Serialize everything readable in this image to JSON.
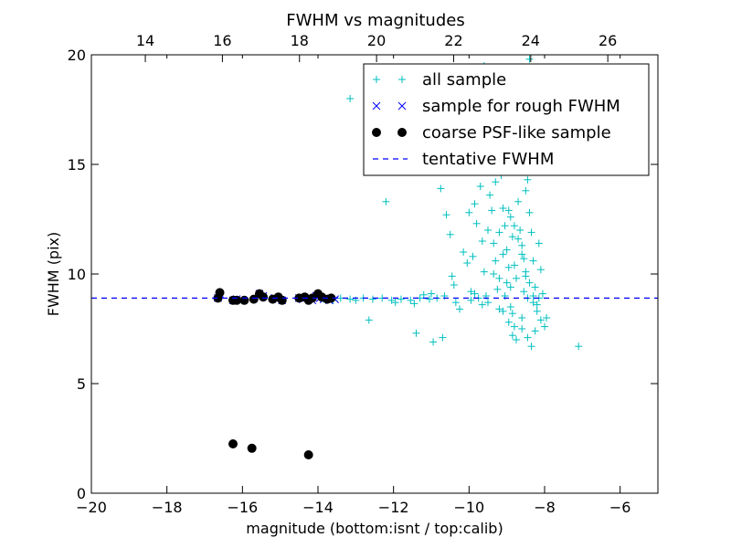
{
  "chart_data": {
    "type": "scatter",
    "title": "FWHM vs magnitudes",
    "xlabel": "magnitude (bottom:isnt / top:calib)",
    "ylabel": "FWHM (pix)",
    "xlim": [
      -20,
      -5
    ],
    "ylim": [
      0,
      20
    ],
    "x_ticks": [
      "−20",
      "−18",
      "−16",
      "−14",
      "−12",
      "−10",
      "−8",
      "−6"
    ],
    "x_tick_values": [
      -20,
      -18,
      -16,
      -14,
      -12,
      -10,
      -8,
      -6
    ],
    "top_xlim": [
      12.6,
      27.3
    ],
    "top_x_ticks": [
      "14",
      "16",
      "18",
      "20",
      "22",
      "24",
      "26"
    ],
    "top_x_tick_values": [
      14,
      16,
      18,
      20,
      22,
      24,
      26
    ],
    "y_ticks": [
      "0",
      "5",
      "10",
      "15",
      "20"
    ],
    "y_tick_values": [
      0,
      5,
      10,
      15,
      20
    ],
    "grid": false,
    "legend_position": "top-right",
    "series": [
      {
        "name": "all sample",
        "marker": "plus",
        "color": "#00bfbf",
        "points": [
          [
            -13.85,
            8.85
          ],
          [
            -13.6,
            8.8
          ],
          [
            -13.4,
            8.9
          ],
          [
            -13.15,
            8.85
          ],
          [
            -13.0,
            8.8
          ],
          [
            -12.8,
            8.9
          ],
          [
            -12.55,
            8.85
          ],
          [
            -12.3,
            8.9
          ],
          [
            -12.05,
            8.8
          ],
          [
            -11.8,
            8.85
          ],
          [
            -11.55,
            8.8
          ],
          [
            -11.3,
            8.9
          ],
          [
            -11.05,
            8.85
          ],
          [
            -10.85,
            8.9
          ],
          [
            -10.65,
            9.0
          ],
          [
            -13.15,
            18.0
          ],
          [
            -12.2,
            13.3
          ],
          [
            -12.65,
            7.9
          ],
          [
            -11.95,
            8.7
          ],
          [
            -11.45,
            8.65
          ],
          [
            -11.4,
            7.3
          ],
          [
            -11.2,
            9.05
          ],
          [
            -11.0,
            9.1
          ],
          [
            -10.95,
            6.9
          ],
          [
            -10.75,
            13.9
          ],
          [
            -10.7,
            7.1
          ],
          [
            -10.6,
            12.7
          ],
          [
            -10.5,
            11.8
          ],
          [
            -10.45,
            9.9
          ],
          [
            -10.4,
            9.5
          ],
          [
            -10.35,
            8.7
          ],
          [
            -10.25,
            8.4
          ],
          [
            -10.15,
            11.0
          ],
          [
            -10.05,
            10.5
          ],
          [
            -10.0,
            12.8
          ],
          [
            -9.95,
            9.2
          ],
          [
            -9.9,
            10.8
          ],
          [
            -9.85,
            13.2
          ],
          [
            -9.8,
            12.3
          ],
          [
            -9.7,
            14.0
          ],
          [
            -9.65,
            11.5
          ],
          [
            -9.6,
            10.1
          ],
          [
            -9.55,
            9.0
          ],
          [
            -9.5,
            8.7
          ],
          [
            -9.45,
            13.6
          ],
          [
            -9.4,
            12.9
          ],
          [
            -9.35,
            11.4
          ],
          [
            -9.3,
            10.6
          ],
          [
            -9.25,
            9.3
          ],
          [
            -9.2,
            8.4
          ],
          [
            -9.15,
            14.5
          ],
          [
            -9.1,
            13.0
          ],
          [
            -9.05,
            12.2
          ],
          [
            -9.0,
            11.1
          ],
          [
            -8.95,
            10.3
          ],
          [
            -8.9,
            9.4
          ],
          [
            -8.85,
            8.2
          ],
          [
            -8.8,
            7.6
          ],
          [
            -9.3,
            14.2
          ],
          [
            -9.2,
            11.9
          ],
          [
            -9.1,
            10.9
          ],
          [
            -9.0,
            9.6
          ],
          [
            -8.9,
            12.6
          ],
          [
            -8.85,
            11.7
          ],
          [
            -8.8,
            10.4
          ],
          [
            -8.75,
            9.8
          ],
          [
            -8.7,
            13.3
          ],
          [
            -8.65,
            12.0
          ],
          [
            -8.6,
            11.3
          ],
          [
            -8.55,
            10.7
          ],
          [
            -8.5,
            9.9
          ],
          [
            -8.45,
            8.9
          ],
          [
            -8.4,
            12.8
          ],
          [
            -8.35,
            11.9
          ],
          [
            -8.3,
            10.6
          ],
          [
            -8.25,
            9.4
          ],
          [
            -8.2,
            8.6
          ],
          [
            -8.15,
            11.4
          ],
          [
            -8.1,
            10.2
          ],
          [
            -8.05,
            9.1
          ],
          [
            -8.95,
            12.9
          ],
          [
            -8.8,
            12.2
          ],
          [
            -8.7,
            11.6
          ],
          [
            -8.6,
            10.9
          ],
          [
            -8.5,
            10.1
          ],
          [
            -8.4,
            9.6
          ],
          [
            -8.3,
            9.0
          ],
          [
            -8.2,
            8.3
          ],
          [
            -8.1,
            7.9
          ],
          [
            -8.0,
            7.6
          ],
          [
            -7.95,
            8.0
          ],
          [
            -9.5,
            12.0
          ],
          [
            -9.35,
            10.0
          ],
          [
            -9.2,
            9.8
          ],
          [
            -9.1,
            8.3
          ],
          [
            -8.95,
            7.8
          ],
          [
            -8.85,
            7.2
          ],
          [
            -8.75,
            7.0
          ],
          [
            -8.6,
            7.5
          ],
          [
            -8.45,
            7.1
          ],
          [
            -8.35,
            6.7
          ],
          [
            -8.25,
            7.4
          ],
          [
            -7.1,
            6.7
          ],
          [
            -9.0,
            17.5
          ],
          [
            -8.7,
            16.2
          ],
          [
            -8.8,
            14.7
          ],
          [
            -8.5,
            13.8
          ],
          [
            -9.45,
            16.1
          ],
          [
            -9.25,
            15.1
          ],
          [
            -8.65,
            15.6
          ],
          [
            -8.45,
            14.3
          ],
          [
            -9.6,
            19.5
          ],
          [
            -8.4,
            19.8
          ],
          [
            -9.05,
            9.0
          ],
          [
            -8.9,
            8.5
          ],
          [
            -8.6,
            8.0
          ],
          [
            -8.3,
            8.7
          ],
          [
            -8.55,
            9.2
          ],
          [
            -8.15,
            8.9
          ],
          [
            -9.75,
            8.9
          ],
          [
            -9.65,
            8.6
          ],
          [
            -9.85,
            9.1
          ],
          [
            -9.95,
            8.8
          ]
        ]
      },
      {
        "name": "sample for rough FWHM",
        "marker": "x",
        "color": "#0000ff",
        "points": [
          [
            -16.65,
            8.9
          ],
          [
            -16.6,
            9.1
          ],
          [
            -16.25,
            8.8
          ],
          [
            -16.15,
            8.85
          ],
          [
            -15.55,
            9.1
          ],
          [
            -15.45,
            9.0
          ],
          [
            -15.15,
            8.9
          ],
          [
            -15.05,
            8.85
          ],
          [
            -14.95,
            8.8
          ],
          [
            -14.5,
            8.9
          ],
          [
            -14.4,
            8.85
          ],
          [
            -14.25,
            8.9
          ],
          [
            -14.15,
            8.8
          ],
          [
            -14.05,
            9.0
          ],
          [
            -13.95,
            8.9
          ],
          [
            -13.85,
            8.85
          ],
          [
            -13.7,
            8.8
          ],
          [
            -13.55,
            8.85
          ]
        ]
      },
      {
        "name": "coarse PSF-like sample",
        "marker": "dot",
        "color": "#000000",
        "points": [
          [
            -16.65,
            8.9
          ],
          [
            -16.6,
            9.15
          ],
          [
            -16.25,
            8.8
          ],
          [
            -16.15,
            8.8
          ],
          [
            -15.95,
            8.8
          ],
          [
            -15.7,
            8.85
          ],
          [
            -15.55,
            9.1
          ],
          [
            -15.45,
            8.95
          ],
          [
            -15.2,
            8.85
          ],
          [
            -15.05,
            8.95
          ],
          [
            -14.95,
            8.8
          ],
          [
            -14.5,
            8.9
          ],
          [
            -14.35,
            8.95
          ],
          [
            -14.25,
            8.8
          ],
          [
            -14.15,
            8.9
          ],
          [
            -14.0,
            9.1
          ],
          [
            -13.9,
            8.95
          ],
          [
            -13.75,
            8.85
          ],
          [
            -13.65,
            8.9
          ],
          [
            -16.25,
            2.25
          ],
          [
            -15.75,
            2.05
          ],
          [
            -14.25,
            1.75
          ]
        ]
      },
      {
        "name": "tentative FWHM",
        "marker": "dashed-line",
        "color": "#0000ff",
        "y": 8.9
      }
    ]
  }
}
